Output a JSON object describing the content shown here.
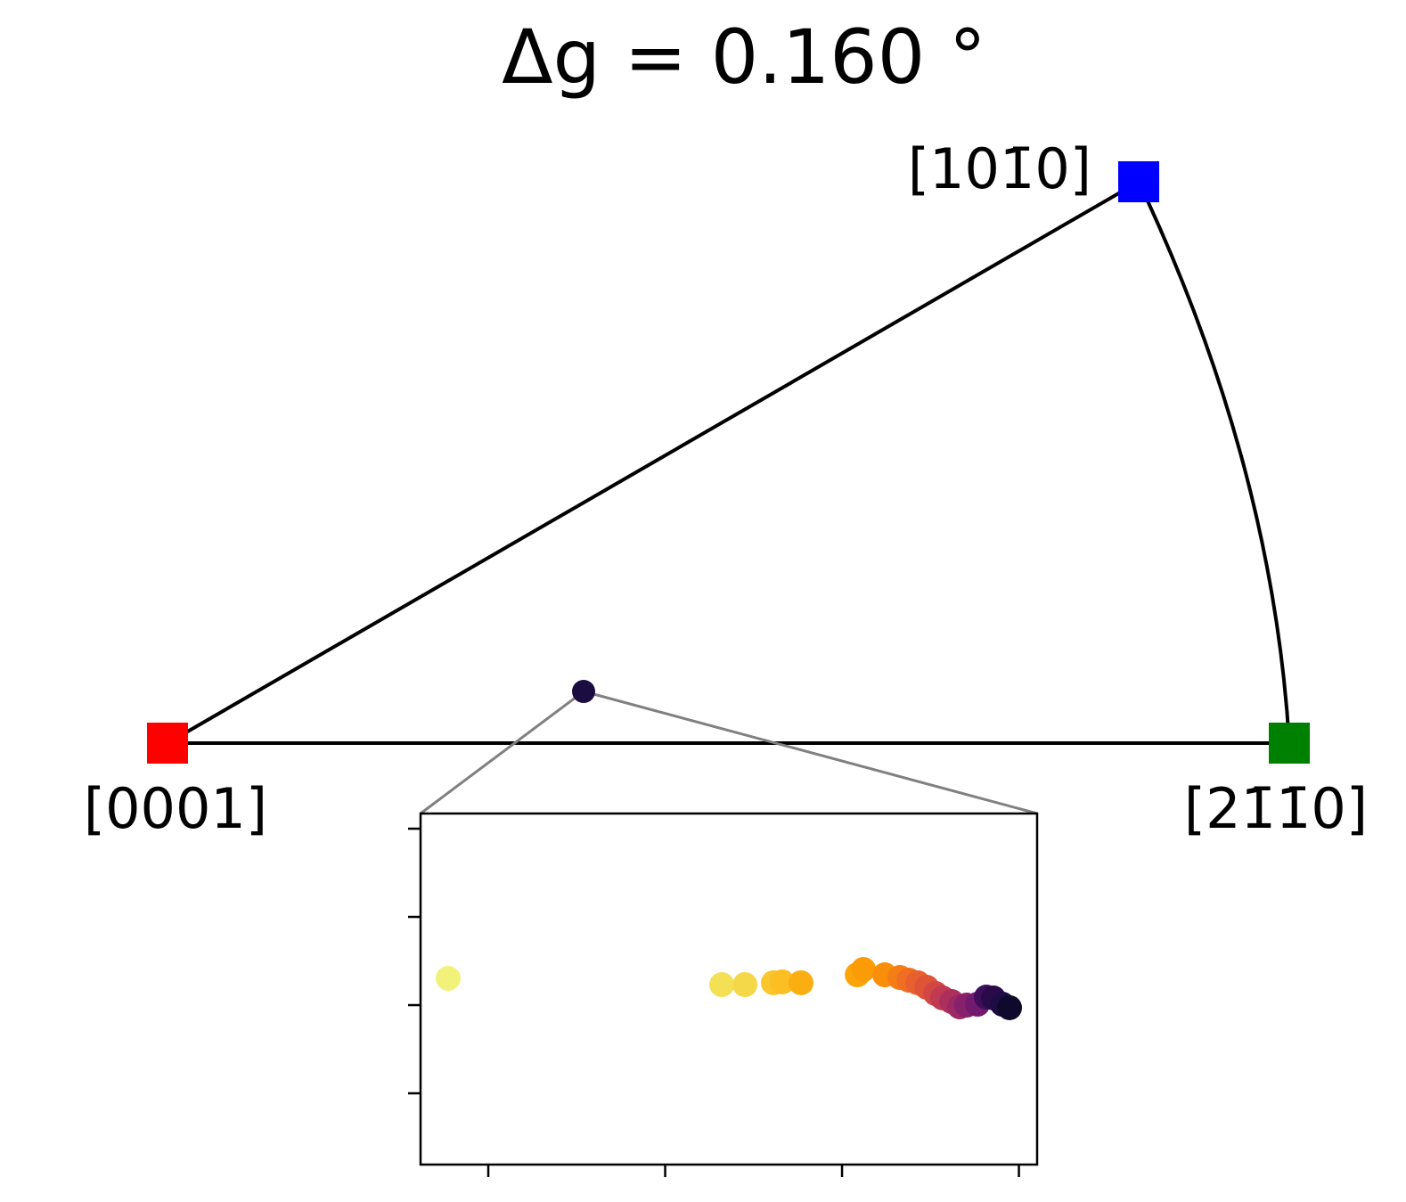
{
  "chart_data": [
    {
      "type": "ipf",
      "title": "Δg = 0.160 °",
      "vertices": [
        {
          "label": "[0001]",
          "color": "#ff0000"
        },
        {
          "label": "[21̄1̄0]",
          "color": "#008000"
        },
        {
          "label": "[101̄0]",
          "color": "#0000ff"
        }
      ],
      "mean_color": "#1b0c41"
    },
    {
      "type": "scatter",
      "x": [
        -0.227,
        1.32,
        1.451,
        1.612,
        1.662,
        1.768,
        2.086,
        2.121,
        2.242,
        2.327,
        2.378,
        2.428,
        2.479,
        2.529,
        2.569,
        2.62,
        2.665,
        2.705,
        2.766,
        2.816,
        2.856,
        2.907,
        2.947
      ],
      "values": [
        1.303,
        1.232,
        1.232,
        1.253,
        1.263,
        1.253,
        1.343,
        1.404,
        1.343,
        1.313,
        1.283,
        1.253,
        1.202,
        1.131,
        1.081,
        1.04,
        0.98,
        1.0,
        1.01,
        1.091,
        1.081,
        1.01,
        0.97
      ],
      "colors": [
        "#f2f27a",
        "#f4e055",
        "#f5d849",
        "#fac62d",
        "#fbbe23",
        "#fbae12",
        "#fca50a",
        "#fb9b06",
        "#f98e09",
        "#f57d15",
        "#ef6e21",
        "#e8602d",
        "#df5337",
        "#d24644",
        "#c03a51",
        "#ad305c",
        "#9b2964",
        "#87216b",
        "#721a6e",
        "#3e0e5a",
        "#2a0b4a",
        "#1e0c45",
        "#0f0a2c"
      ],
      "xlim": [
        -0.383,
        3.103
      ],
      "xticks": [
        0,
        1,
        2,
        3
      ],
      "ylim": [
        -0.808,
        3.172
      ],
      "yticks": [
        0,
        1,
        2,
        3
      ]
    }
  ]
}
